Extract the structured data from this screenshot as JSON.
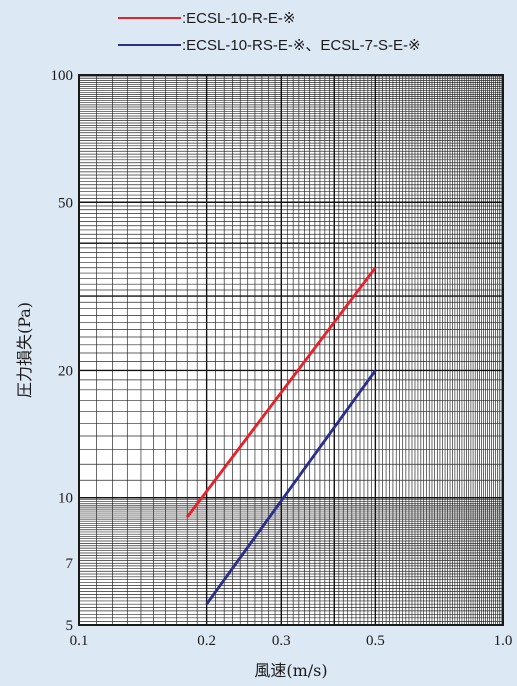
{
  "chart_data": {
    "type": "line",
    "xlabel": "風速(m/s)",
    "ylabel": "圧力損失(Pa)",
    "x_scale": "log",
    "y_scale": "log",
    "xlim": [
      0.1,
      1.0
    ],
    "ylim": [
      5,
      100
    ],
    "grid": true,
    "legend_position": "top",
    "x_ticks": [
      {
        "value": 0.1,
        "label": "0.1"
      },
      {
        "value": 0.2,
        "label": "0.2"
      },
      {
        "value": 0.3,
        "label": "0.3"
      },
      {
        "value": 0.5,
        "label": "0.5"
      },
      {
        "value": 1.0,
        "label": "1.0"
      }
    ],
    "y_ticks": [
      {
        "value": 5,
        "label": "5"
      },
      {
        "value": 7,
        "label": "7"
      },
      {
        "value": 10,
        "label": "10"
      },
      {
        "value": 20,
        "label": "20"
      },
      {
        "value": 50,
        "label": "50"
      },
      {
        "value": 100,
        "label": "100"
      }
    ],
    "series": [
      {
        "name": ":ECSL-10-R-E-※",
        "color": "#e8202a",
        "x": [
          0.18,
          0.5
        ],
        "y": [
          9.0,
          35.0
        ]
      },
      {
        "name": ":ECSL-10-RS-E-※、ECSL-7-S-E-※",
        "color": "#2a2f8c",
        "x": [
          0.2,
          0.5
        ],
        "y": [
          5.6,
          20.0
        ]
      }
    ]
  }
}
